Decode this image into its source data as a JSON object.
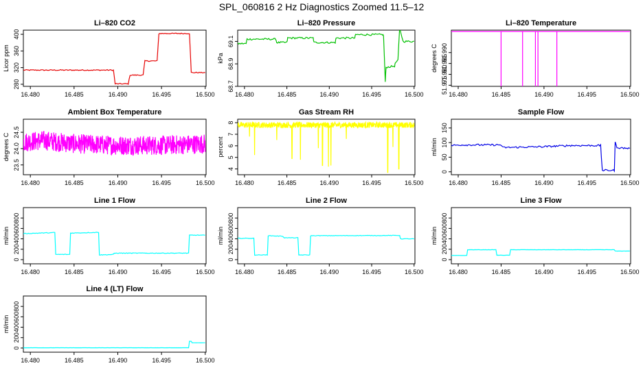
{
  "figure": {
    "title": "SPL_060816 2 Hz Diagnostics Zoomed 11.5–12"
  },
  "colors": {
    "red": "#e60000",
    "green": "#00c000",
    "magenta": "#ff00ff",
    "yellow": "#ffff00",
    "blue": "#0000e6",
    "cyan": "#00ffff",
    "axis": "#000000"
  },
  "chart_data": [
    {
      "type": "line",
      "title": "Li–820 CO2",
      "ylabel": "Licor ppm",
      "color": "red",
      "xlim": [
        16.4792,
        16.5001
      ],
      "ylim": [
        275,
        410
      ],
      "xticks": [
        "16.480",
        "16.485",
        "16.490",
        "16.495",
        "16.500"
      ],
      "xtick_values": [
        16.48,
        16.485,
        16.49,
        16.495,
        16.5
      ],
      "yticks": [
        "280",
        "320",
        "360",
        "400"
      ],
      "ytick_values": [
        280,
        320,
        360,
        400
      ],
      "x": [
        16.4792,
        16.4895,
        16.4897,
        16.4912,
        16.4914,
        16.4929,
        16.4931,
        16.4945,
        16.4947,
        16.4982,
        16.4984,
        16.5
      ],
      "y": [
        314,
        314,
        281,
        281,
        302,
        302,
        336,
        336,
        402,
        402,
        308,
        308
      ],
      "noise": 1.2
    },
    {
      "type": "line",
      "title": "Li–820 Pressure",
      "ylabel": "kPa",
      "color": "green",
      "xlim": [
        16.4792,
        16.5001
      ],
      "ylim": [
        68.7,
        69.2
      ],
      "xticks": [
        "16.480",
        "16.485",
        "16.490",
        "16.495",
        "16.500"
      ],
      "xtick_values": [
        16.48,
        16.485,
        16.49,
        16.495,
        16.5
      ],
      "yticks": [
        "68.7",
        "68.9",
        "69.1"
      ],
      "ytick_values": [
        68.7,
        68.9,
        69.1
      ],
      "x": [
        16.4792,
        16.4802,
        16.4803,
        16.4837,
        16.4838,
        16.485,
        16.4851,
        16.4881,
        16.4882,
        16.4907,
        16.4908,
        16.493,
        16.4931,
        16.4963,
        16.4964,
        16.4966,
        16.4967,
        16.4977,
        16.4978,
        16.4981,
        16.4983,
        16.4987,
        16.5
      ],
      "y": [
        69.08,
        69.08,
        69.12,
        69.12,
        69.09,
        69.09,
        69.13,
        69.13,
        69.09,
        69.09,
        69.13,
        69.13,
        69.16,
        69.16,
        69.15,
        68.74,
        68.87,
        68.88,
        68.91,
        68.93,
        69.22,
        69.1,
        69.1
      ],
      "noise": 0.008
    },
    {
      "type": "line",
      "title": "Li–820 Temperature",
      "ylabel": "degrees C",
      "color": "magenta",
      "xlim": [
        16.4792,
        16.5001
      ],
      "ylim": [
        51.9745,
        52.0003
      ],
      "xticks": [
        "16.480",
        "16.485",
        "16.490",
        "16.495",
        "16.500"
      ],
      "xtick_values": [
        16.48,
        16.485,
        16.49,
        16.495,
        16.5
      ],
      "yticks": [
        "51.975",
        "51.980",
        "51.985",
        "51.990"
      ],
      "ytick_values": [
        51.975,
        51.98,
        51.985,
        51.99
      ],
      "x": [
        16.4792,
        16.485,
        16.485,
        16.485,
        16.4875,
        16.4875,
        16.4875,
        16.489,
        16.489,
        16.489,
        16.4893,
        16.4893,
        16.4893,
        16.4915,
        16.4915,
        16.4915,
        16.5
      ],
      "y": [
        51.9997,
        51.9997,
        51.9745,
        51.9997,
        51.9997,
        51.9745,
        51.9997,
        51.9997,
        51.9745,
        51.9997,
        51.9997,
        51.9745,
        51.9997,
        51.9997,
        51.9745,
        51.9997,
        51.9997
      ],
      "noise": 0
    },
    {
      "type": "line",
      "title": "Ambient Box Temperature",
      "ylabel": "degrees C",
      "color": "magenta",
      "xlim": [
        16.4792,
        16.5001
      ],
      "ylim": [
        23.2,
        24.9
      ],
      "xticks": [
        "16.480",
        "16.485",
        "16.490",
        "16.495",
        "16.500"
      ],
      "xtick_values": [
        16.48,
        16.485,
        16.49,
        16.495,
        16.5
      ],
      "yticks": [
        "23.5",
        "24.0",
        "24.5"
      ],
      "ytick_values": [
        23.5,
        24.0,
        24.5
      ],
      "x": [
        16.4792,
        16.4815,
        16.485,
        16.49,
        16.495,
        16.5
      ],
      "y": [
        24.2,
        24.25,
        24.15,
        24.1,
        24.1,
        24.15
      ],
      "noise": 0.3,
      "dense": true
    },
    {
      "type": "line",
      "title": "Gas Stream RH",
      "ylabel": "percent",
      "color": "yellow",
      "xlim": [
        16.4792,
        16.5001
      ],
      "ylim": [
        3.5,
        8.3
      ],
      "xticks": [
        "16.480",
        "16.485",
        "16.490",
        "16.495",
        "16.500"
      ],
      "xtick_values": [
        16.48,
        16.485,
        16.49,
        16.495,
        16.5
      ],
      "yticks": [
        "4",
        "5",
        "6",
        "7",
        "8"
      ],
      "ytick_values": [
        4,
        5,
        6,
        7,
        8
      ],
      "x": [
        16.4792,
        16.5
      ],
      "y": [
        7.8,
        7.8
      ],
      "noise": 0.25,
      "dense": true,
      "spike_x": [
        16.4806,
        16.4812,
        16.4838,
        16.4856,
        16.4866,
        16.4887,
        16.4892,
        16.4899,
        16.4902,
        16.492,
        16.4969,
        16.4975,
        16.4982
      ],
      "spike_y": [
        6.8,
        5.2,
        6.5,
        4.9,
        4.8,
        5.8,
        4.3,
        4.2,
        4.3,
        6.6,
        3.7,
        5.9,
        4.0
      ]
    },
    {
      "type": "line",
      "title": "Sample Flow",
      "ylabel": "ml/min",
      "color": "blue",
      "xlim": [
        16.4792,
        16.5001
      ],
      "ylim": [
        -10,
        180
      ],
      "xticks": [
        "16.480",
        "16.485",
        "16.490",
        "16.495",
        "16.500"
      ],
      "xtick_values": [
        16.48,
        16.485,
        16.49,
        16.495,
        16.5
      ],
      "yticks": [
        "0",
        "50",
        "100",
        "150"
      ],
      "ytick_values": [
        0,
        50,
        100,
        150
      ],
      "x": [
        16.4792,
        16.4802,
        16.485,
        16.4852,
        16.49,
        16.493,
        16.4966,
        16.4968,
        16.4982,
        16.4983,
        16.4985,
        16.4988,
        16.5
      ],
      "y": [
        90,
        92,
        92,
        83,
        86,
        90,
        90,
        5,
        5,
        100,
        85,
        82,
        80
      ],
      "noise": 3
    },
    {
      "type": "line",
      "title": "Line 1 Flow",
      "ylabel": "ml/min",
      "color": "cyan",
      "xlim": [
        16.4792,
        16.5001
      ],
      "ylim": [
        -80,
        1000
      ],
      "xticks": [
        "16.480",
        "16.485",
        "16.490",
        "16.495",
        "16.500"
      ],
      "xtick_values": [
        16.48,
        16.485,
        16.49,
        16.495,
        16.5
      ],
      "yticks": [
        "0",
        "200",
        "400",
        "600",
        "800"
      ],
      "ytick_values": [
        0,
        200,
        400,
        600,
        800
      ],
      "x": [
        16.4792,
        16.4828,
        16.4829,
        16.4845,
        16.4846,
        16.4878,
        16.4879,
        16.4895,
        16.4896,
        16.4981,
        16.4982,
        16.5
      ],
      "y": [
        500,
        520,
        100,
        100,
        510,
        525,
        90,
        100,
        125,
        125,
        470,
        470
      ],
      "noise": 6
    },
    {
      "type": "line",
      "title": "Line 2 Flow",
      "ylabel": "ml/min",
      "color": "cyan",
      "xlim": [
        16.4792,
        16.5001
      ],
      "ylim": [
        -80,
        1000
      ],
      "xticks": [
        "16.480",
        "16.485",
        "16.490",
        "16.495",
        "16.500"
      ],
      "xtick_values": [
        16.48,
        16.485,
        16.49,
        16.495,
        16.5
      ],
      "yticks": [
        "0",
        "200",
        "400",
        "600",
        "800"
      ],
      "ytick_values": [
        0,
        200,
        400,
        600,
        800
      ],
      "x": [
        16.4792,
        16.4811,
        16.4812,
        16.4827,
        16.4828,
        16.4845,
        16.4847,
        16.4863,
        16.4864,
        16.4877,
        16.4878,
        16.4983,
        16.4984,
        16.5
      ],
      "y": [
        410,
        410,
        90,
        90,
        460,
        450,
        420,
        420,
        90,
        90,
        460,
        465,
        400,
        400
      ],
      "noise": 5
    },
    {
      "type": "line",
      "title": "Line 3 Flow",
      "ylabel": "ml/min",
      "color": "cyan",
      "xlim": [
        16.4792,
        16.5001
      ],
      "ylim": [
        -80,
        1000
      ],
      "xticks": [
        "16.480",
        "16.485",
        "16.490",
        "16.495",
        "16.500"
      ],
      "xtick_values": [
        16.48,
        16.485,
        16.49,
        16.495,
        16.5
      ],
      "yticks": [
        "0",
        "200",
        "400",
        "600",
        "800"
      ],
      "ytick_values": [
        0,
        200,
        400,
        600,
        800
      ],
      "x": [
        16.4792,
        16.481,
        16.4811,
        16.4844,
        16.4845,
        16.486,
        16.4861,
        16.4982,
        16.4983,
        16.5
      ],
      "y": [
        80,
        80,
        190,
        190,
        85,
        85,
        190,
        190,
        165,
        165
      ],
      "noise": 2
    },
    {
      "type": "line",
      "title": "Line 4 (LT) Flow",
      "ylabel": "ml/min",
      "color": "cyan",
      "xlim": [
        16.4792,
        16.5001
      ],
      "ylim": [
        -80,
        1000
      ],
      "xticks": [
        "16.480",
        "16.485",
        "16.490",
        "16.495",
        "16.500"
      ],
      "xtick_values": [
        16.48,
        16.485,
        16.49,
        16.495,
        16.5
      ],
      "yticks": [
        "0",
        "200",
        "400",
        "600",
        "800"
      ],
      "ytick_values": [
        0,
        200,
        400,
        600,
        800
      ],
      "x": [
        16.4792,
        16.4981,
        16.4982,
        16.4984,
        16.4985,
        16.5
      ],
      "y": [
        5,
        5,
        130,
        130,
        100,
        100
      ],
      "noise": 1
    }
  ]
}
